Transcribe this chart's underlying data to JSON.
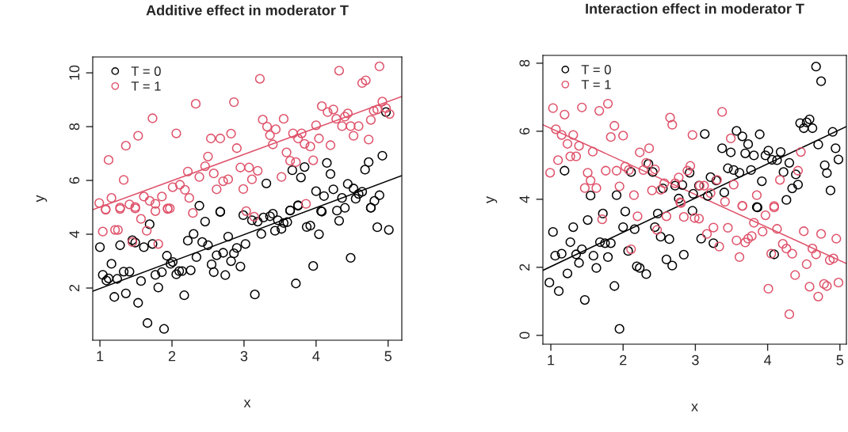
{
  "chart_data": [
    {
      "type": "scatter",
      "title": "Additive effect in moderator T",
      "xlabel": "x",
      "ylabel": "y",
      "xlim": [
        0.9,
        5.19
      ],
      "ylim": [
        0.06,
        10.59
      ],
      "xticks": [
        1,
        2,
        3,
        4,
        5
      ],
      "yticks": [
        2,
        4,
        6,
        8,
        10
      ],
      "legend": "top left",
      "marker": "circle",
      "series": [
        {
          "name": "T = 0",
          "color": "#000000",
          "x": [
            1.0,
            1.16,
            1.04,
            1.09,
            1.12,
            1.24,
            1.2,
            1.33,
            1.36,
            1.41,
            1.28,
            1.45,
            1.49,
            1.53,
            1.57,
            1.61,
            1.66,
            1.69,
            1.73,
            1.77,
            1.81,
            1.86,
            1.89,
            1.93,
            1.98,
            2.01,
            2.06,
            2.1,
            2.14,
            2.17,
            2.22,
            2.26,
            2.3,
            2.34,
            2.42,
            2.46,
            2.5,
            2.55,
            2.58,
            2.62,
            2.67,
            2.71,
            2.74,
            2.78,
            2.82,
            2.86,
            2.9,
            2.95,
            2.99,
            3.02,
            3.11,
            3.15,
            3.19,
            3.24,
            3.27,
            3.36,
            3.4,
            3.43,
            3.47,
            3.52,
            3.55,
            3.6,
            3.64,
            3.72,
            3.75,
            3.87,
            3.92,
            3.96,
            4.04,
            4.08,
            4.29,
            4.32,
            4.4,
            4.48,
            4.76,
            4.85,
            5.01,
            2.38,
            2.67,
            3.31,
            3.67,
            3.79,
            3.84,
            4.15,
            4.2,
            4.0,
            4.11,
            4.24,
            4.36,
            4.44,
            4.52,
            4.55,
            4.59,
            4.64,
            4.68,
            4.73,
            4.81,
            4.88,
            4.92,
            4.97,
            4.07,
            3.75,
            4.76,
            3.64
          ],
          "values": [
            3.52,
            2.9,
            2.49,
            2.28,
            2.36,
            2.34,
            1.67,
            2.61,
            1.8,
            2.61,
            3.59,
            3.78,
            3.69,
            1.45,
            2.26,
            3.52,
            0.7,
            4.37,
            3.64,
            2.49,
            2.02,
            2.59,
            0.48,
            3.2,
            2.9,
            2.97,
            2.51,
            2.63,
            2.63,
            1.73,
            3.76,
            2.66,
            4.01,
            3.15,
            3.71,
            4.47,
            3.59,
            2.88,
            2.59,
            3.22,
            4.83,
            3.31,
            2.48,
            3.91,
            3.0,
            3.29,
            3.49,
            2.8,
            4.71,
            3.64,
            4.52,
            1.76,
            4.47,
            4.01,
            4.62,
            4.67,
            4.76,
            4.13,
            4.52,
            4.2,
            4.42,
            4.45,
            4.88,
            2.17,
            5.06,
            4.27,
            4.32,
            2.82,
            4.0,
            4.84,
            4.88,
            4.5,
            4.98,
            3.12,
            4.98,
            4.26,
            4.16,
            5.06,
            4.84,
            5.89,
            6.38,
            6.11,
            6.5,
            6.65,
            6.24,
            5.6,
            5.42,
            5.67,
            5.35,
            5.87,
            5.7,
            5.32,
            5.5,
            5.58,
            6.4,
            6.68,
            5.24,
            5.45,
            6.92,
            8.54,
            4.86,
            5.08,
            4.99,
            4.89
          ]
        },
        {
          "name": "T = 1",
          "color": "#df536b",
          "x": [
            0.99,
            1.08,
            1.16,
            1.12,
            1.28,
            1.36,
            1.33,
            1.41,
            1.49,
            1.53,
            1.61,
            1.69,
            1.73,
            1.77,
            1.86,
            1.94,
            2.01,
            2.06,
            2.11,
            2.18,
            2.22,
            2.24,
            2.33,
            2.38,
            2.46,
            2.5,
            2.54,
            2.58,
            2.62,
            2.67,
            2.71,
            2.78,
            2.82,
            2.86,
            2.9,
            2.95,
            2.99,
            3.07,
            3.11,
            3.19,
            3.22,
            3.26,
            3.32,
            3.36,
            3.4,
            3.44,
            3.52,
            3.55,
            3.59,
            3.64,
            3.68,
            3.72,
            3.75,
            3.8,
            3.84,
            3.92,
            3.96,
            4.0,
            4.04,
            4.08,
            4.16,
            4.2,
            4.24,
            4.28,
            4.32,
            4.36,
            4.4,
            4.44,
            4.48,
            4.52,
            4.59,
            4.64,
            4.69,
            4.73,
            4.76,
            4.8,
            4.85,
            4.88,
            4.92,
            4.97,
            5.02,
            3.86,
            1.04,
            1.21,
            1.25,
            1.57,
            1.65,
            1.45,
            1.81,
            2.29,
            3.03,
            3.14,
            1.08,
            1.28,
            1.49,
            1.77,
            1.94,
            1.97
          ],
          "values": [
            5.16,
            4.93,
            5.35,
            6.76,
            4.99,
            7.29,
            6.02,
            5.11,
            5.01,
            7.66,
            5.4,
            5.24,
            8.31,
            5.13,
            5.4,
            4.96,
            5.75,
            7.75,
            5.84,
            5.65,
            6.33,
            5.35,
            8.85,
            6.13,
            6.53,
            6.89,
            7.56,
            6.26,
            5.67,
            7.56,
            5.97,
            6.04,
            7.74,
            8.91,
            7.2,
            6.48,
            5.68,
            6.48,
            6.04,
            6.36,
            9.78,
            8.26,
            8.0,
            7.68,
            7.34,
            7.9,
            6.13,
            8.29,
            7.04,
            6.73,
            7.75,
            6.68,
            7.56,
            7.75,
            7.36,
            7.26,
            6.75,
            8.05,
            7.56,
            8.76,
            8.54,
            7.31,
            8.64,
            8.29,
            10.08,
            8.02,
            8.37,
            8.49,
            8.02,
            7.66,
            8.02,
            9.62,
            9.72,
            7.52,
            8.25,
            8.59,
            8.64,
            10.24,
            8.93,
            8.69,
            8.47,
            5.13,
            4.1,
            4.16,
            4.16,
            4.57,
            4.13,
            3.71,
            3.64,
            4.79,
            4.86,
            4.65,
            4.91,
            4.94,
            4.96,
            4.86,
            4.94,
            4.96
          ]
        },
        {
          "type": "line",
          "marker": "none",
          "color": "#000000",
          "x": [
            0.9,
            5.19
          ],
          "values": [
            1.88,
            6.18
          ]
        },
        {
          "type": "line",
          "marker": "none",
          "color": "#df536b",
          "x": [
            0.9,
            5.19
          ],
          "values": [
            4.91,
            9.12
          ]
        }
      ]
    },
    {
      "type": "scatter",
      "title": "Interaction effect in moderator T",
      "xlabel": "x",
      "ylabel": "y",
      "xlim": [
        0.89,
        5.09
      ],
      "ylim": [
        -0.26,
        8.23
      ],
      "xticks": [
        1,
        2,
        3,
        4,
        5
      ],
      "yticks": [
        0,
        2,
        4,
        6,
        8
      ],
      "legend": "top left",
      "marker": "circle",
      "series": [
        {
          "name": "T = 0",
          "color": "#000000",
          "x": [
            1.19,
            1.55,
            1.91,
            2.11,
            2.35,
            2.41,
            2.55,
            2.72,
            2.77,
            2.82,
            2.92,
            2.97,
            3.05,
            3.13,
            3.17,
            3.21,
            3.29,
            3.4,
            3.37,
            3.45,
            3.49,
            3.53,
            3.57,
            3.61,
            3.65,
            3.69,
            3.73,
            3.77,
            3.81,
            3.89,
            3.92,
            3.97,
            4.01,
            4.06,
            4.13,
            4.18,
            4.22,
            4.3,
            4.26,
            4.34,
            4.39,
            4.42,
            4.45,
            4.5,
            4.54,
            4.58,
            4.62,
            4.67,
            4.7,
            4.74,
            4.79,
            4.82,
            4.87,
            4.9,
            4.94,
            4.98,
            3.85,
            1.03,
            0.98,
            1.06,
            1.11,
            1.15,
            1.23,
            1.27,
            1.31,
            1.35,
            1.39,
            1.43,
            1.47,
            1.51,
            1.59,
            1.63,
            1.68,
            1.72,
            1.75,
            1.79,
            1.83,
            1.88,
            1.95,
            2.0,
            2.03,
            2.07,
            2.16,
            2.19,
            2.23,
            2.32,
            2.44,
            2.48,
            2.52,
            2.6,
            2.64,
            2.68,
            2.84,
            2.96,
            3.08,
            3.25,
            3.86,
            4.09
          ],
          "values": [
            4.84,
            4.11,
            4.12,
            4.8,
            5.04,
            4.8,
            4.32,
            4.4,
            4.02,
            4.42,
            4.78,
            4.16,
            4.4,
            5.92,
            4.1,
            4.65,
            4.55,
            4.2,
            5.5,
            4.91,
            5.38,
            4.86,
            6.01,
            4.78,
            5.85,
            5.35,
            5.62,
            4.86,
            5.29,
            5.91,
            4.53,
            5.29,
            5.43,
            5.16,
            5.15,
            5.39,
            4.8,
            5.07,
            3.98,
            4.32,
            4.73,
            4.43,
            6.24,
            6.09,
            6.26,
            6.35,
            6.09,
            7.9,
            5.61,
            7.47,
            5.0,
            4.77,
            4.26,
            5.98,
            5.5,
            5.17,
            3.77,
            3.04,
            1.55,
            2.34,
            1.3,
            2.4,
            1.82,
            2.74,
            3.18,
            2.38,
            2.13,
            2.53,
            1.04,
            3.39,
            2.34,
            1.98,
            2.74,
            3.58,
            2.71,
            2.3,
            2.71,
            1.45,
            0.19,
            3.18,
            3.64,
            2.48,
            3.12,
            2.03,
            1.98,
            1.8,
            3.18,
            3.58,
            2.9,
            2.23,
            2.83,
            2.05,
            2.37,
            3.66,
            2.84,
            2.71,
            3.76,
            2.38
          ]
        },
        {
          "name": "T = 1",
          "color": "#df536b",
          "x": [
            1.03,
            1.19,
            1.43,
            1.67,
            1.79,
            1.07,
            1.15,
            1.31,
            1.23,
            1.39,
            1.58,
            1.27,
            1.35,
            1.1,
            0.99,
            1.51,
            1.55,
            1.47,
            1.63,
            1.76,
            1.88,
            1.83,
            2.0,
            1.91,
            1.95,
            2.03,
            2.08,
            2.15,
            2.23,
            2.28,
            2.32,
            2.36,
            2.44,
            2.4,
            2.52,
            2.57,
            2.65,
            2.68,
            2.72,
            2.77,
            2.79,
            2.89,
            2.93,
            2.96,
            3.06,
            3.12,
            3.21,
            3.3,
            3.37,
            3.49,
            3.53,
            3.65,
            3.85,
            4.09,
            4.17,
            4.42,
            4.46,
            1.71,
            2.2,
            2.11,
            2.47,
            2.6,
            2.8,
            2.84,
            2.99,
            3.05,
            3.16,
            3.25,
            3.33,
            3.41,
            3.45,
            3.57,
            3.61,
            3.65,
            3.69,
            3.73,
            3.78,
            3.81,
            3.93,
            3.97,
            4.01,
            4.05,
            4.09,
            4.13,
            4.21,
            4.26,
            4.3,
            4.34,
            4.38,
            4.5,
            4.54,
            4.58,
            4.62,
            4.67,
            4.7,
            4.74,
            4.78,
            4.82,
            4.86,
            4.91,
            4.95,
            4.98
          ],
          "values": [
            6.68,
            6.49,
            6.7,
            6.6,
            6.81,
            6.06,
            5.89,
            5.89,
            5.63,
            5.57,
            5.4,
            5.26,
            5.26,
            5.15,
            4.78,
            4.78,
            4.55,
            4.33,
            4.33,
            4.84,
            6.16,
            5.83,
            5.87,
            4.84,
            4.38,
            4.96,
            4.86,
            4.12,
            5.38,
            4.86,
            5.07,
            5.5,
            4.88,
            4.26,
            4.28,
            4.47,
            6.4,
            6.19,
            4.47,
            4.64,
            3.91,
            4.84,
            4.98,
            5.89,
            4.4,
            4.4,
            4.18,
            4.57,
            6.57,
            5.79,
            4.43,
            3.81,
            4.12,
            3.8,
            4.57,
            4.84,
            5.39,
            3.41,
            3.5,
            2.53,
            3.1,
            3.5,
            3.89,
            3.48,
            3.45,
            3.43,
            2.98,
            3.17,
            2.61,
            3.93,
            3.16,
            2.79,
            2.3,
            3.8,
            2.73,
            2.84,
            2.92,
            3.31,
            3.05,
            3.53,
            1.37,
            2.4,
            3.76,
            3.13,
            2.69,
            2.55,
            0.62,
            2.4,
            1.77,
            3.06,
            2.09,
            1.43,
            2.55,
            2.38,
            1.14,
            2.98,
            1.51,
            1.45,
            2.21,
            2.26,
            2.84,
            1.55
          ]
        },
        {
          "type": "line",
          "marker": "none",
          "color": "#000000",
          "x": [
            0.89,
            5.09
          ],
          "values": [
            1.91,
            6.14
          ]
        },
        {
          "type": "line",
          "marker": "none",
          "color": "#df536b",
          "x": [
            0.89,
            5.09
          ],
          "values": [
            6.19,
            2.11
          ]
        }
      ]
    }
  ]
}
